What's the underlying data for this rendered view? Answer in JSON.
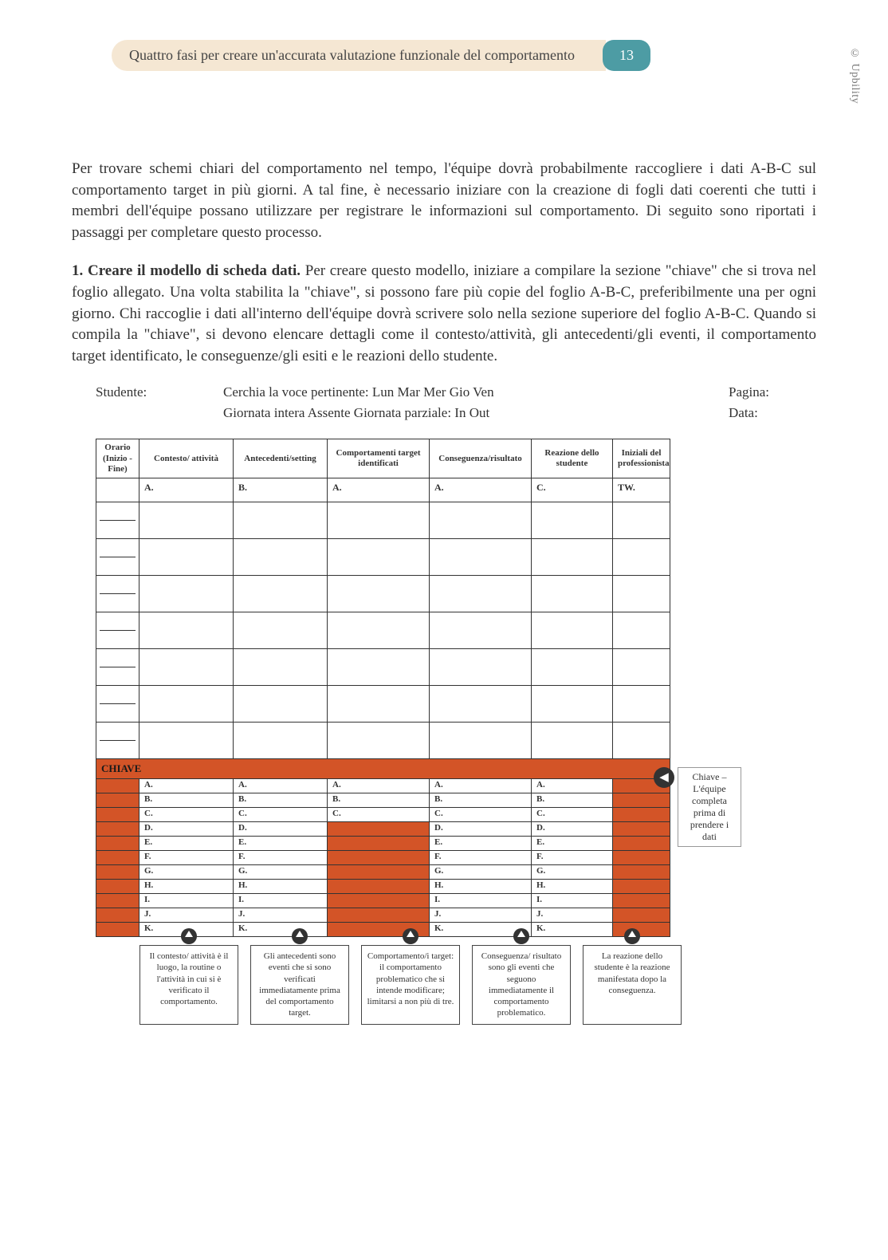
{
  "header": {
    "title": "Quattro fasi per creare un'accurata valutazione funzionale del comportamento",
    "page_number": "13",
    "copyright": "© Upbility"
  },
  "paragraphs": {
    "p1": "Per trovare schemi chiari del comportamento nel tempo, l'équipe dovrà probabilmente raccogliere i dati A-B-C sul comportamento target in più giorni. A tal fine, è necessario iniziare con la creazione di fogli dati coerenti che tutti i membri dell'équipe possano utilizzare per registrare le informazioni sul comportamento. Di seguito sono riportati i passaggi per completare questo processo.",
    "p2_bold": "1. Creare il modello di scheda dati.",
    "p2_rest": " Per creare questo modello, iniziare a compilare la sezione \"chiave\" che si trova nel foglio allegato. Una volta stabilita la \"chiave\", si possono fare più copie del foglio A-B-C, preferibilmente una per ogni giorno. Chi raccoglie i dati all'interno dell'équipe dovrà scrivere solo nella sezione superiore del foglio A-B-C. Quando si compila la \"chiave\", si devono elencare dettagli come il contesto/attività, gli antecedenti/gli eventi, il comportamento target identificato, le conseguenze/gli esiti e le reazioni dello studente."
  },
  "form": {
    "studente_label": "Studente:",
    "circchia": "Cerchia la voce pertinente: Lun  Mar  Mer  Gio  Ven",
    "pagina_label": "Pagina:",
    "day_line": "Giornata intera   Assente   Giornata parziale: In   Out",
    "data_label": "Data:"
  },
  "table": {
    "headers": {
      "time": "Orario (Inizio -Fine)",
      "context": "Contesto/ attività",
      "antecedent": "Antecedenti/setting",
      "behaviors": "Comportamenti target identificati",
      "consequence": "Conseguenza/risultato",
      "reaction": "Reazione dello studente",
      "initials": "Iniziali del professionista"
    },
    "first_row": {
      "context": "A.",
      "antecedent": "B.",
      "behaviors": "A.",
      "consequence": "A.",
      "reaction": "C.",
      "initials": "TW."
    },
    "blank_blocks": 7,
    "chiave_label": "CHIAVE",
    "key_letters_long": [
      "A.",
      "B.",
      "C.",
      "D.",
      "E.",
      "F.",
      "G.",
      "H.",
      "I.",
      "J.",
      "K."
    ],
    "key_letters_short": [
      "A.",
      "B.",
      "C."
    ],
    "colors": {
      "chiave_bg": "#d35427",
      "border": "#333333"
    }
  },
  "sidenote": {
    "text": "Chiave – L'équipe completa prima di prendere i dati"
  },
  "callouts": [
    "Il contesto/ attività è il luogo, la routine o l'attività in cui si è verificato il comportamento.",
    "Gli antecedenti sono eventi che si sono verificati immediatamente prima del comportamento target.",
    "Comportamento/i target: il comportamento problematico che si intende modificare; limitarsi a non più di tre.",
    "Conseguenza/ risultato sono gli eventi che seguono immediatamente il comportamento problematico.",
    "La reazione dello studente è la reazione manifestata dopo la conseguenza."
  ]
}
